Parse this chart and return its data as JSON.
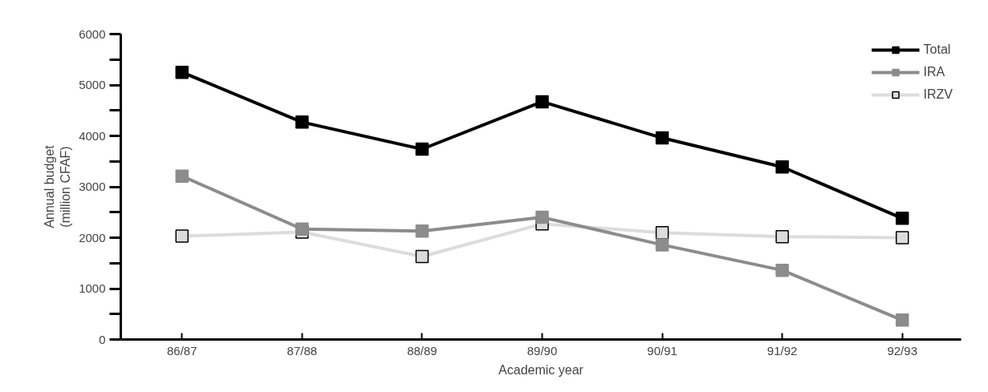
{
  "chart_data": {
    "type": "line",
    "xlabel": "Academic year",
    "ylabel": "Annual budget\n(million CFAF)",
    "categories": [
      "86/87",
      "87/88",
      "88/89",
      "89/90",
      "90/91",
      "91/92",
      "92/93"
    ],
    "series": [
      {
        "name": "Total",
        "color": "#000000",
        "values": [
          5250,
          4270,
          3740,
          4670,
          3960,
          3390,
          2380
        ]
      },
      {
        "name": "IRA",
        "color": "#8c8c8c",
        "values": [
          3210,
          2170,
          2130,
          2400,
          1860,
          1360,
          380
        ]
      },
      {
        "name": "IRZV",
        "color": "#dcdcdc",
        "values": [
          2030,
          2110,
          1630,
          2270,
          2100,
          2020,
          2000
        ]
      }
    ],
    "ylim": [
      0,
      6000
    ],
    "yticks": [
      0,
      {
        "value": 500,
        "label": null
      },
      1000,
      {
        "value": 1500,
        "label": null
      },
      2000,
      {
        "value": 2500,
        "label": null
      },
      3000,
      {
        "value": 3500,
        "label": null
      },
      4000,
      {
        "value": 4500,
        "label": null
      },
      5000,
      {
        "value": 5500,
        "label": null
      },
      6000
    ],
    "marker": "square",
    "line_style": "solid",
    "grid": false,
    "legend": "top right"
  }
}
